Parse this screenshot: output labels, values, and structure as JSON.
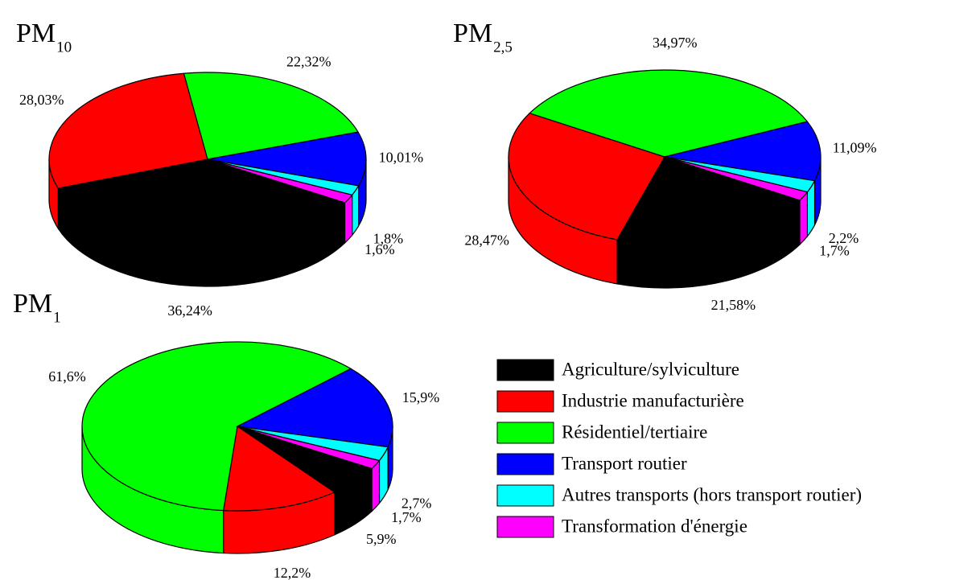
{
  "legend": {
    "categories": [
      "Agriculture/sylviculture",
      "Industrie manufacturière",
      "Résidentiel/tertiaire",
      "Transport routier",
      "Autres transports (hors transport routier)",
      "Transformation d'énergie"
    ],
    "colors": [
      "#000000",
      "#ff0000",
      "#00ff00",
      "#0000ff",
      "#00ffff",
      "#ff00ff"
    ]
  },
  "chart_data": [
    {
      "type": "pie",
      "title": "PM",
      "subscript": "10",
      "values": [
        36.24,
        28.03,
        22.32,
        10.01,
        1.8,
        1.6
      ],
      "value_labels": [
        "36,24%",
        "28,03%",
        "22,32%",
        "10,01%",
        "1,8%",
        "1,6%"
      ]
    },
    {
      "type": "pie",
      "title": "PM",
      "subscript": "2,5",
      "values": [
        21.58,
        28.47,
        34.97,
        11.09,
        2.2,
        1.7
      ],
      "value_labels": [
        "21,58%",
        "28,47%",
        "34,97%",
        "11,09%",
        "2,2%",
        "1,7%"
      ]
    },
    {
      "type": "pie",
      "title": "PM",
      "subscript": "1",
      "values": [
        5.9,
        12.2,
        61.6,
        15.9,
        2.7,
        1.7
      ],
      "value_labels": [
        "5,9%",
        "12,2%",
        "61,6%",
        "15,9%",
        "2,7%",
        "1,7%"
      ]
    }
  ]
}
